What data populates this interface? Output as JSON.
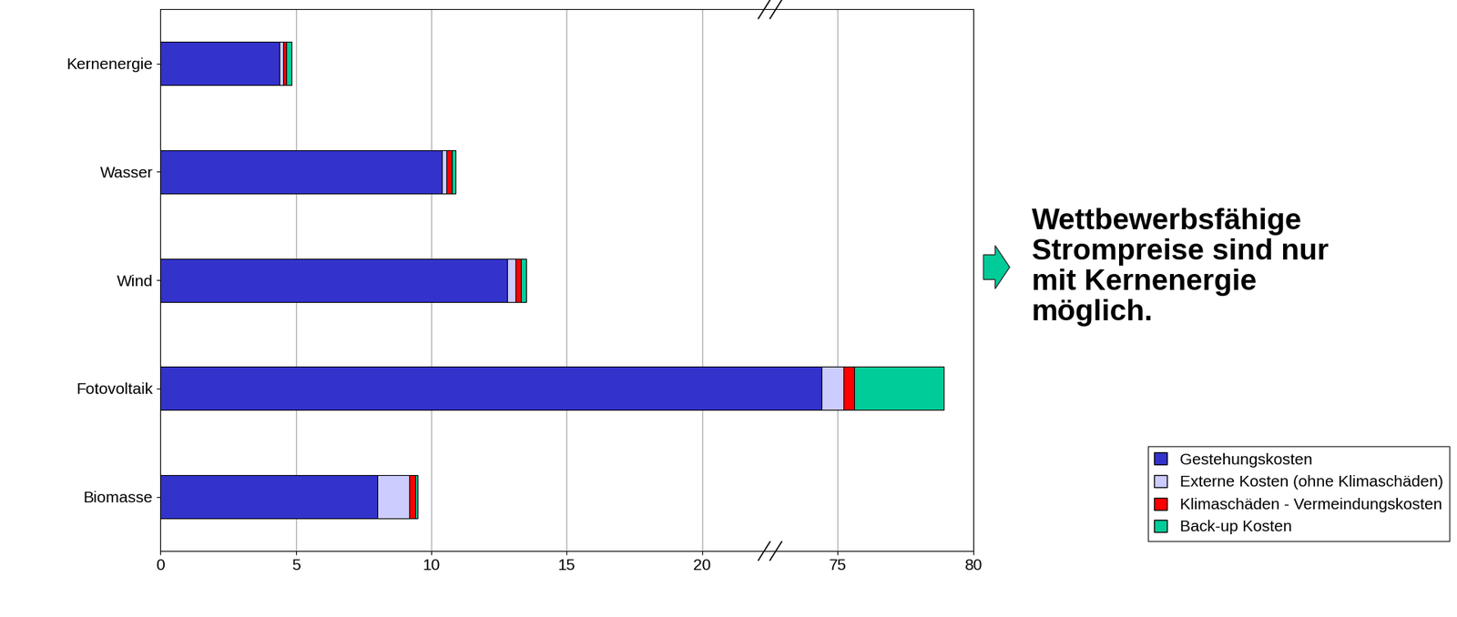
{
  "chart_data": {
    "type": "bar",
    "orientation": "horizontal",
    "stacked": true,
    "categories": [
      "Kernenergie",
      "Wasser",
      "Wind",
      "Fotovoltaik",
      "Biomasse"
    ],
    "series": [
      {
        "name": "Gestehungskosten",
        "color": "#3333cc",
        "values": [
          4.4,
          10.4,
          12.8,
          74.4,
          8.0
        ]
      },
      {
        "name": "Externe Kosten (ohne Klimaschäden)",
        "color": "#ccccff",
        "values": [
          0.15,
          0.15,
          0.3,
          0.8,
          1.2
        ]
      },
      {
        "name": "Klimaschäden - Vermeindungskosten",
        "color": "#ff0000",
        "values": [
          0.1,
          0.2,
          0.2,
          0.4,
          0.2
        ]
      },
      {
        "name": "Back-up Kosten",
        "color": "#00cc99",
        "values": [
          0.2,
          0.15,
          0.2,
          3.3,
          0.1
        ]
      }
    ],
    "xlim": [
      0,
      80
    ],
    "xticks": [
      0,
      5,
      10,
      15,
      20,
      75,
      80
    ],
    "grid": true,
    "legend": "center right",
    "annotation": "Wettbewerbsfähige\nStrompreise sind nur\nmit Kernenergie\nmöglich."
  }
}
